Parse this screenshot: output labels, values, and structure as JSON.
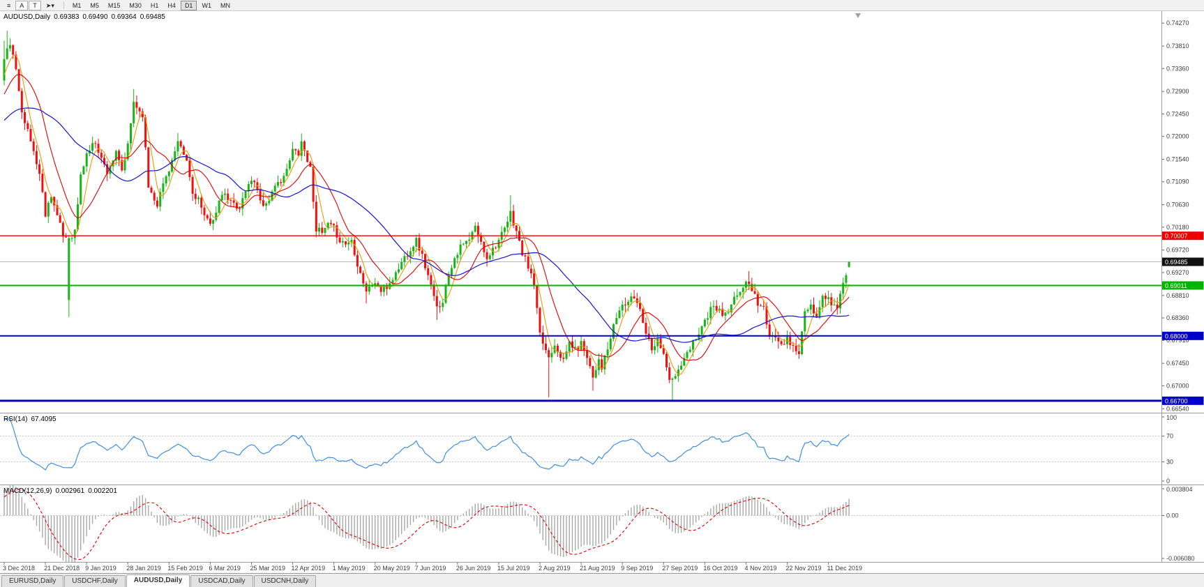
{
  "toolbar": {
    "icons": [
      {
        "name": "chart-menu-icon",
        "glyph": "≡",
        "boxed": false
      },
      {
        "name": "annotate-a-icon",
        "glyph": "A",
        "boxed": true
      },
      {
        "name": "annotate-t-icon",
        "glyph": "T",
        "boxed": true
      },
      {
        "name": "pointer-tool-icon",
        "glyph": "➤",
        "caret": "▾",
        "boxed": false
      }
    ],
    "timeframes": [
      "M1",
      "M5",
      "M15",
      "M30",
      "H1",
      "H4",
      "D1",
      "W1",
      "MN"
    ],
    "active_timeframe": "D1"
  },
  "chart": {
    "symbol_label": "AUDUSD,Daily",
    "ohlc": {
      "open": "0.69383",
      "high": "0.69490",
      "low": "0.69364",
      "close": "0.69485"
    },
    "price_axis": {
      "min": 0.6646,
      "max": 0.7451,
      "ticks": [
        "0.74270",
        "0.73810",
        "0.73360",
        "0.72900",
        "0.72450",
        "0.72000",
        "0.71540",
        "0.71090",
        "0.70630",
        "0.70180",
        "0.69720",
        "0.69270",
        "0.68810",
        "0.68360",
        "0.67910",
        "0.67450",
        "0.67000",
        "0.66540"
      ]
    },
    "bid": {
      "price": 0.69485,
      "label": "0.69485"
    },
    "hlines": [
      {
        "name": "resistance-line-red",
        "price": 0.70007,
        "label": "0.70007",
        "color": "#EE0000",
        "width": 1.3
      },
      {
        "name": "support-line-green",
        "price": 0.69011,
        "label": "0.69011",
        "color": "#00B400",
        "width": 2
      },
      {
        "name": "support-line-blue",
        "price": 0.68,
        "label": "0.68000",
        "color": "#0000C8",
        "width": 2
      },
      {
        "name": "support-line-blue-lower",
        "price": 0.667,
        "label": "0.66700",
        "color": "#0000C8",
        "width": 3
      }
    ],
    "colors": {
      "up": "#18B418",
      "down": "#EE1111",
      "ma_fast": "#E89B00",
      "ma_mid": "#E00000",
      "ma_slow": "#1414CC",
      "bid_line": "#B8B8B8"
    },
    "ma_periods": {
      "fast": 5,
      "mid": 13,
      "slow": 34
    }
  },
  "chart_data": {
    "type": "candlestick",
    "symbol": "AUDUSD",
    "timeframe": "Daily",
    "bars": 288,
    "label_every": 14,
    "x_labels": [
      "3 Dec 2018",
      "21 Dec 2018",
      "9 Jan 2019",
      "28 Jan 2019",
      "15 Feb 2019",
      "6 Mar 2019",
      "25 Mar 2019",
      "12 Apr 2019",
      "1 May 2019",
      "20 May 2019",
      "7 Jun 2019",
      "26 Jun 2019",
      "15 Jul 2019",
      "2 Aug 2019",
      "21 Aug 2019",
      "9 Sep 2019",
      "27 Sep 2019",
      "16 Oct 2019",
      "4 Nov 2019",
      "22 Nov 2019",
      "11 Dec 2019"
    ],
    "close_anchors": [
      [
        0,
        0.7355
      ],
      [
        2,
        0.7388
      ],
      [
        4,
        0.733
      ],
      [
        6,
        0.7255
      ],
      [
        8,
        0.721
      ],
      [
        10,
        0.717
      ],
      [
        12,
        0.7125
      ],
      [
        14,
        0.7045
      ],
      [
        16,
        0.7085
      ],
      [
        18,
        0.704
      ],
      [
        20,
        0.7
      ],
      [
        22,
        0.6995
      ],
      [
        24,
        0.701
      ],
      [
        26,
        0.712
      ],
      [
        28,
        0.7165
      ],
      [
        31,
        0.719
      ],
      [
        33,
        0.7155
      ],
      [
        35,
        0.713
      ],
      [
        38,
        0.7165
      ],
      [
        40,
        0.713
      ],
      [
        42,
        0.718
      ],
      [
        44,
        0.727
      ],
      [
        46,
        0.725
      ],
      [
        47,
        0.7245
      ],
      [
        49,
        0.71
      ],
      [
        52,
        0.7065
      ],
      [
        54,
        0.7105
      ],
      [
        56,
        0.7135
      ],
      [
        59,
        0.7185
      ],
      [
        62,
        0.715
      ],
      [
        64,
        0.7085
      ],
      [
        66,
        0.7075
      ],
      [
        68,
        0.7035
      ],
      [
        70,
        0.703
      ],
      [
        72,
        0.7045
      ],
      [
        74,
        0.7085
      ],
      [
        77,
        0.7068
      ],
      [
        80,
        0.7058
      ],
      [
        82,
        0.709
      ],
      [
        84,
        0.7115
      ],
      [
        86,
        0.7095
      ],
      [
        88,
        0.706
      ],
      [
        90,
        0.7075
      ],
      [
        93,
        0.7105
      ],
      [
        96,
        0.713
      ],
      [
        98,
        0.7172
      ],
      [
        100,
        0.7168
      ],
      [
        101,
        0.719
      ],
      [
        104,
        0.7135
      ],
      [
        106,
        0.7015
      ],
      [
        108,
        0.7005
      ],
      [
        110,
        0.7022
      ],
      [
        112,
        0.7015
      ],
      [
        114,
        0.6992
      ],
      [
        116,
        0.6985
      ],
      [
        118,
        0.6992
      ],
      [
        120,
        0.6945
      ],
      [
        123,
        0.689
      ],
      [
        126,
        0.6908
      ],
      [
        128,
        0.689
      ],
      [
        130,
        0.6897
      ],
      [
        133,
        0.6925
      ],
      [
        136,
        0.6958
      ],
      [
        138,
        0.6975
      ],
      [
        140,
        0.6992
      ],
      [
        142,
        0.696
      ],
      [
        144,
        0.692
      ],
      [
        147,
        0.6855
      ],
      [
        149,
        0.6872
      ],
      [
        151,
        0.6925
      ],
      [
        153,
        0.6958
      ],
      [
        155,
        0.6978
      ],
      [
        158,
        0.6992
      ],
      [
        160,
        0.7018
      ],
      [
        162,
        0.6985
      ],
      [
        164,
        0.6958
      ],
      [
        166,
        0.6975
      ],
      [
        168,
        0.6992
      ],
      [
        170,
        0.7012
      ],
      [
        172,
        0.7045
      ],
      [
        174,
        0.701
      ],
      [
        176,
        0.6965
      ],
      [
        178,
        0.694
      ],
      [
        180,
        0.69
      ],
      [
        182,
        0.68
      ],
      [
        184,
        0.6772
      ],
      [
        185,
        0.6758
      ],
      [
        187,
        0.6785
      ],
      [
        189,
        0.6762
      ],
      [
        190,
        0.6748
      ],
      [
        192,
        0.6788
      ],
      [
        194,
        0.6772
      ],
      [
        196,
        0.6785
      ],
      [
        198,
        0.6762
      ],
      [
        200,
        0.6718
      ],
      [
        202,
        0.6755
      ],
      [
        203,
        0.6738
      ],
      [
        205,
        0.6772
      ],
      [
        206,
        0.6795
      ],
      [
        208,
        0.6838
      ],
      [
        210,
        0.6862
      ],
      [
        212,
        0.6868
      ],
      [
        214,
        0.6878
      ],
      [
        216,
        0.6855
      ],
      [
        218,
        0.6808
      ],
      [
        220,
        0.6778
      ],
      [
        222,
        0.6792
      ],
      [
        224,
        0.6768
      ],
      [
        226,
        0.6708
      ],
      [
        228,
        0.6718
      ],
      [
        230,
        0.6742
      ],
      [
        232,
        0.6762
      ],
      [
        234,
        0.6788
      ],
      [
        236,
        0.6808
      ],
      [
        238,
        0.683
      ],
      [
        240,
        0.6852
      ],
      [
        242,
        0.6856
      ],
      [
        244,
        0.6842
      ],
      [
        246,
        0.6846
      ],
      [
        248,
        0.6872
      ],
      [
        250,
        0.6892
      ],
      [
        252,
        0.6906
      ],
      [
        254,
        0.6896
      ],
      [
        256,
        0.6866
      ],
      [
        258,
        0.6856
      ],
      [
        260,
        0.6792
      ],
      [
        262,
        0.6802
      ],
      [
        264,
        0.6788
      ],
      [
        266,
        0.6792
      ],
      [
        268,
        0.6778
      ],
      [
        270,
        0.6766
      ],
      [
        272,
        0.6846
      ],
      [
        274,
        0.6856
      ],
      [
        276,
        0.6832
      ],
      [
        278,
        0.6882
      ],
      [
        280,
        0.6872
      ],
      [
        282,
        0.6862
      ],
      [
        283,
        0.6856
      ],
      [
        284,
        0.6882
      ],
      [
        285,
        0.6906
      ],
      [
        286,
        0.6926
      ],
      [
        287,
        0.6948
      ]
    ],
    "prehistory_anchors": [
      [
        -40,
        0.716
      ],
      [
        -30,
        0.7205
      ],
      [
        -20,
        0.7185
      ],
      [
        -10,
        0.7245
      ],
      [
        -1,
        0.733
      ]
    ],
    "overrides": [
      {
        "i": 0,
        "o": 0.7312,
        "h": 0.7392,
        "l": 0.7302,
        "c": 0.7355
      },
      {
        "i": 1,
        "h": 0.7412
      },
      {
        "i": 22,
        "o": 0.6872,
        "h": 0.7002,
        "l": 0.6838,
        "c": 0.6996
      },
      {
        "i": 44,
        "h": 0.7295
      },
      {
        "i": 59,
        "h": 0.7207
      },
      {
        "i": 101,
        "h": 0.7206
      },
      {
        "i": 123,
        "l": 0.6865
      },
      {
        "i": 147,
        "l": 0.6832
      },
      {
        "i": 172,
        "h": 0.7082
      },
      {
        "i": 185,
        "l": 0.6677
      },
      {
        "i": 200,
        "l": 0.669
      },
      {
        "i": 227,
        "l": 0.667
      },
      {
        "i": 253,
        "h": 0.693
      },
      {
        "i": 270,
        "l": 0.6754
      },
      {
        "i": 287,
        "o": 0.69383,
        "h": 0.6949,
        "l": 0.69364,
        "c": 0.69485
      }
    ],
    "noise_seed": 11,
    "close_noise": 0.0007,
    "wick_noise": 0.0015
  },
  "rsi": {
    "name": "RSI(14)",
    "value": "67.4095",
    "period": 14,
    "levels": [
      70,
      30
    ],
    "scale_values": [
      100,
      70,
      30,
      0
    ],
    "scale_labels": [
      "100",
      "70",
      "30",
      "0"
    ],
    "color": "#3E8EDE"
  },
  "macd": {
    "name": "MACD(12,26,9)",
    "value_main": "0.002961",
    "value_signal": "0.002201",
    "fast": 12,
    "slow": 26,
    "signal": 9,
    "vmax": 0.003804,
    "vmin": -0.00608,
    "scale_labels": [
      {
        "v": 0.003804,
        "t": "0.003804"
      },
      {
        "v": 0,
        "t": "0.00"
      },
      {
        "v": -0.00608,
        "t": "-0.006080"
      }
    ],
    "hist_color": "#A8A8A8",
    "signal_color": "#E00000"
  },
  "tabs": {
    "items": [
      "EURUSD,Daily",
      "USDCHF,Daily",
      "AUDUSD,Daily",
      "USDCAD,Daily",
      "USDCNH,Daily"
    ],
    "active_index": 2
  }
}
